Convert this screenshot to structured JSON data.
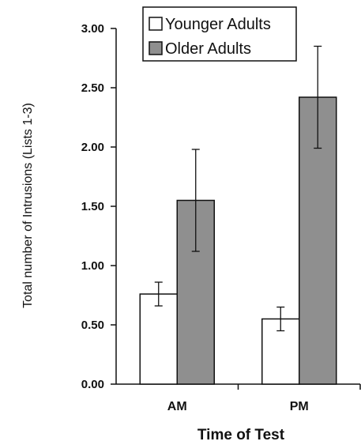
{
  "chart_data": {
    "type": "bar",
    "categories": [
      "AM",
      "PM"
    ],
    "series": [
      {
        "name": "Younger Adults",
        "values": [
          0.76,
          0.55
        ],
        "errors": [
          0.1,
          0.1
        ],
        "color": "#ffffff"
      },
      {
        "name": "Older Adults",
        "values": [
          1.55,
          2.42
        ],
        "errors": [
          0.43,
          0.43
        ],
        "color": "#8f8f8f"
      }
    ],
    "yticks": [
      "0.00",
      "0.50",
      "1.00",
      "1.50",
      "2.00",
      "2.50",
      "3.00"
    ],
    "ylim": [
      0,
      3
    ],
    "xlabel": "Time of Test",
    "ylabel": "Total number of Intrusions (Lists 1-3)",
    "grid": false,
    "legend_position": "top"
  }
}
